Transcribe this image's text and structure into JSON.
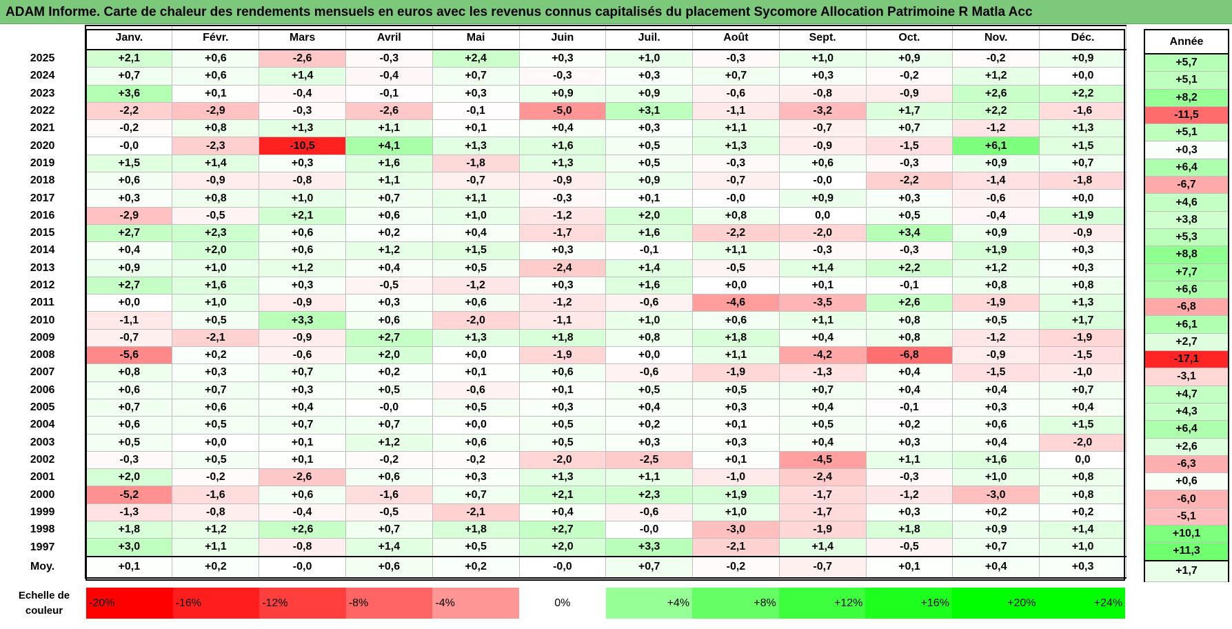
{
  "title": "ADAM Informe. Carte de chaleur des rendements mensuels en euros avec les revenus connus capitalisés du placement Sycomore Allocation Patrimoine R Matla Acc",
  "chart_data": {
    "type": "heatmap",
    "columns": [
      "Janv.",
      "Févr.",
      "Mars",
      "Avril",
      "Mai",
      "Juin",
      "Juil.",
      "Août",
      "Sept.",
      "Oct.",
      "Nov.",
      "Déc."
    ],
    "annual_header": "Année",
    "rows": [
      {
        "year": "2025",
        "values": [
          "+2,1",
          "+0,6",
          "-2,6",
          "-0,3",
          "+2,4",
          "+0,3",
          "+1,0",
          "-0,3",
          "+1,0",
          "+0,9",
          "-0,2",
          "+0,9"
        ],
        "annual": "+5,7"
      },
      {
        "year": "2024",
        "values": [
          "+0,7",
          "+0,6",
          "+1,4",
          "-0,4",
          "+0,7",
          "-0,3",
          "+0,3",
          "+0,7",
          "+0,3",
          "-0,2",
          "+1,2",
          "+0,0"
        ],
        "annual": "+5,1"
      },
      {
        "year": "2023",
        "values": [
          "+3,6",
          "+0,1",
          "-0,4",
          "-0,1",
          "+0,3",
          "+0,9",
          "+0,9",
          "-0,6",
          "-0,8",
          "-0,9",
          "+2,6",
          "+2,2"
        ],
        "annual": "+8,2"
      },
      {
        "year": "2022",
        "values": [
          "-2,2",
          "-2,9",
          "-0,3",
          "-2,6",
          "-0,1",
          "-5,0",
          "+3,1",
          "-1,1",
          "-3,2",
          "+1,7",
          "+2,2",
          "-1,6"
        ],
        "annual": "-11,5"
      },
      {
        "year": "2021",
        "values": [
          "-0,2",
          "+0,8",
          "+1,3",
          "+1,1",
          "+0,1",
          "+0,4",
          "+0,3",
          "+1,1",
          "-0,7",
          "+0,7",
          "-1,2",
          "+1,3"
        ],
        "annual": "+5,1"
      },
      {
        "year": "2020",
        "values": [
          "-0,0",
          "-2,3",
          "-10,5",
          "+4,1",
          "+1,3",
          "+1,6",
          "+0,5",
          "+1,3",
          "-0,9",
          "-1,5",
          "+6,1",
          "+1,5"
        ],
        "annual": "+0,3"
      },
      {
        "year": "2019",
        "values": [
          "+1,5",
          "+1,4",
          "+0,3",
          "+1,6",
          "-1,8",
          "+1,3",
          "+0,5",
          "-0,3",
          "+0,6",
          "-0,3",
          "+0,9",
          "+0,7"
        ],
        "annual": "+6,4"
      },
      {
        "year": "2018",
        "values": [
          "+0,6",
          "-0,9",
          "-0,8",
          "+1,1",
          "-0,7",
          "-0,9",
          "+0,9",
          "-0,7",
          "-0,0",
          "-2,2",
          "-1,4",
          "-1,8"
        ],
        "annual": "-6,7"
      },
      {
        "year": "2017",
        "values": [
          "+0,3",
          "+0,8",
          "+1,0",
          "+0,7",
          "+1,1",
          "-0,3",
          "+0,1",
          "-0,0",
          "+0,9",
          "+0,3",
          "-0,6",
          "+0,0"
        ],
        "annual": "+4,6"
      },
      {
        "year": "2016",
        "values": [
          "-2,9",
          "-0,5",
          "+2,1",
          "+0,6",
          "+1,0",
          "-1,2",
          "+2,0",
          "+0,8",
          "0,0",
          "+0,5",
          "-0,4",
          "+1,9"
        ],
        "annual": "+3,8"
      },
      {
        "year": "2015",
        "values": [
          "+2,7",
          "+2,3",
          "+0,6",
          "+0,2",
          "+0,4",
          "-1,7",
          "+1,6",
          "-2,2",
          "-2,0",
          "+3,4",
          "+0,9",
          "-0,9"
        ],
        "annual": "+5,3"
      },
      {
        "year": "2014",
        "values": [
          "+0,4",
          "+2,0",
          "+0,6",
          "+1,2",
          "+1,5",
          "+0,3",
          "-0,1",
          "+1,1",
          "-0,3",
          "-0,3",
          "+1,9",
          "+0,3"
        ],
        "annual": "+8,8"
      },
      {
        "year": "2013",
        "values": [
          "+0,9",
          "+1,0",
          "+1,2",
          "+0,4",
          "+0,5",
          "-2,4",
          "+1,4",
          "-0,5",
          "+1,4",
          "+2,2",
          "+1,2",
          "+0,3"
        ],
        "annual": "+7,7"
      },
      {
        "year": "2012",
        "values": [
          "+2,7",
          "+1,6",
          "+0,3",
          "-0,5",
          "-1,2",
          "+0,3",
          "+1,6",
          "+0,0",
          "+0,1",
          "-0,1",
          "+0,8",
          "+0,8"
        ],
        "annual": "+6,6"
      },
      {
        "year": "2011",
        "values": [
          "+0,0",
          "+1,0",
          "-0,9",
          "+0,3",
          "+0,6",
          "-1,2",
          "-0,6",
          "-4,6",
          "-3,5",
          "+2,6",
          "-1,9",
          "+1,3"
        ],
        "annual": "-6,8"
      },
      {
        "year": "2010",
        "values": [
          "-1,1",
          "+0,5",
          "+3,3",
          "+0,6",
          "-2,0",
          "-1,1",
          "+1,0",
          "+0,6",
          "+1,1",
          "+0,8",
          "+0,5",
          "+1,7"
        ],
        "annual": "+6,1"
      },
      {
        "year": "2009",
        "values": [
          "-0,7",
          "-2,1",
          "-0,9",
          "+2,7",
          "+1,3",
          "+1,8",
          "+0,8",
          "+1,8",
          "+0,4",
          "+0,8",
          "-1,2",
          "-1,9"
        ],
        "annual": "+2,7"
      },
      {
        "year": "2008",
        "values": [
          "-5,6",
          "+0,2",
          "-0,6",
          "+2,0",
          "+0,0",
          "-1,9",
          "+0,0",
          "+1,1",
          "-4,2",
          "-6,8",
          "-0,9",
          "-1,5"
        ],
        "annual": "-17,1"
      },
      {
        "year": "2007",
        "values": [
          "+0,8",
          "+0,3",
          "+0,7",
          "+0,2",
          "+0,1",
          "+0,6",
          "-0,6",
          "-1,9",
          "-1,3",
          "+0,4",
          "-1,5",
          "-1,0"
        ],
        "annual": "-3,1"
      },
      {
        "year": "2006",
        "values": [
          "+0,6",
          "+0,7",
          "+0,3",
          "+0,5",
          "-0,6",
          "+0,1",
          "+0,5",
          "+0,5",
          "+0,7",
          "+0,4",
          "+0,4",
          "+0,7"
        ],
        "annual": "+4,7"
      },
      {
        "year": "2005",
        "values": [
          "+0,7",
          "+0,6",
          "+0,4",
          "-0,0",
          "+0,5",
          "+0,3",
          "+0,4",
          "+0,3",
          "+0,4",
          "-0,1",
          "+0,3",
          "+0,4"
        ],
        "annual": "+4,3"
      },
      {
        "year": "2004",
        "values": [
          "+0,6",
          "+0,5",
          "+0,7",
          "+0,7",
          "+0,0",
          "+0,5",
          "+0,2",
          "+0,1",
          "+0,5",
          "+0,2",
          "+0,6",
          "+1,5"
        ],
        "annual": "+6,4"
      },
      {
        "year": "2003",
        "values": [
          "+0,5",
          "+0,0",
          "+0,1",
          "+1,2",
          "+0,6",
          "+0,5",
          "+0,3",
          "+0,3",
          "+0,4",
          "+0,3",
          "+0,4",
          "-2,0"
        ],
        "annual": "+2,6"
      },
      {
        "year": "2002",
        "values": [
          "-0,3",
          "+0,5",
          "+0,1",
          "-0,2",
          "-0,2",
          "-2,0",
          "-2,5",
          "+0,1",
          "-4,5",
          "+1,1",
          "+1,6",
          "0,0"
        ],
        "annual": "-6,3"
      },
      {
        "year": "2001",
        "values": [
          "+2,0",
          "-0,2",
          "-2,6",
          "+0,6",
          "+0,3",
          "+1,3",
          "+1,1",
          "-1,0",
          "-2,4",
          "-0,3",
          "+1,0",
          "+0,8"
        ],
        "annual": "+0,6"
      },
      {
        "year": "2000",
        "values": [
          "-5,2",
          "-1,6",
          "+0,6",
          "-1,6",
          "+0,7",
          "+2,1",
          "+2,3",
          "+1,9",
          "-1,7",
          "-1,2",
          "-3,0",
          "+0,8"
        ],
        "annual": "-6,0"
      },
      {
        "year": "1999",
        "values": [
          "-1,3",
          "-0,8",
          "-0,4",
          "-0,5",
          "-2,1",
          "+0,4",
          "-0,6",
          "+1,0",
          "-1,7",
          "+0,3",
          "+0,2",
          "+0,2"
        ],
        "annual": "-5,1"
      },
      {
        "year": "1998",
        "values": [
          "+1,8",
          "+1,2",
          "+2,6",
          "+0,7",
          "+1,8",
          "+2,7",
          "-0,0",
          "-3,0",
          "-1,9",
          "+1,8",
          "+0,9",
          "+1,4"
        ],
        "annual": "+10,1"
      },
      {
        "year": "1997",
        "values": [
          "+3,0",
          "+1,1",
          "-0,8",
          "+1,4",
          "+0,5",
          "+2,0",
          "+3,3",
          "-2,1",
          "+1,4",
          "-0,5",
          "+0,7",
          "+1,0"
        ],
        "annual": "+11,3"
      }
    ],
    "average": {
      "label": "Moy.",
      "values": [
        "+0,1",
        "+0,2",
        "-0,0",
        "+0,6",
        "+0,2",
        "-0,0",
        "+0,7",
        "-0,2",
        "-0,7",
        "+0,1",
        "+0,4",
        "+0,3"
      ],
      "annual": "+1,7"
    },
    "colors": {
      "negative_max": "#ff0000",
      "neutral": "#ffffff",
      "positive_max": "#00ff00"
    }
  },
  "scale": {
    "label": "Echelle de couleur",
    "items": [
      {
        "text": "-20%",
        "value": -20,
        "align": "left"
      },
      {
        "text": "-16%",
        "value": -16,
        "align": "left"
      },
      {
        "text": "-12%",
        "value": -12,
        "align": "left"
      },
      {
        "text": "-8%",
        "value": -8,
        "align": "left"
      },
      {
        "text": "-4%",
        "value": -4,
        "align": "left"
      },
      {
        "text": "0%",
        "value": 0,
        "align": "center"
      },
      {
        "text": "+4%",
        "value": 4,
        "align": "right"
      },
      {
        "text": "+8%",
        "value": 8,
        "align": "right"
      },
      {
        "text": "+12%",
        "value": 12,
        "align": "right"
      },
      {
        "text": "+16%",
        "value": 16,
        "align": "right"
      },
      {
        "text": "+20%",
        "value": 20,
        "align": "right"
      },
      {
        "text": "+24%",
        "value": 24,
        "align": "right"
      }
    ]
  }
}
